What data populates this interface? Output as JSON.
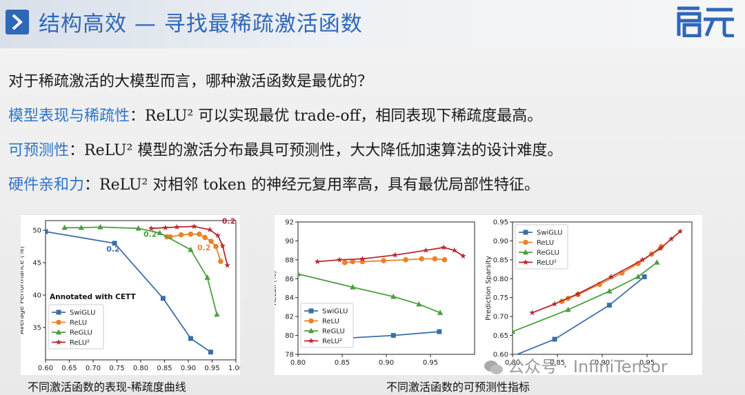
{
  "header": {
    "title": "结构高效 — 寻找最稀疏激活函数",
    "logo_text": "启元"
  },
  "body": {
    "question": "对于稀疏激活的大模型而言，哪种激活函数是最优的？",
    "points": [
      {
        "key": "模型表现与稀疏性",
        "text": "：ReLU² 可以实现最优 trade-off，相同表现下稀疏度最高。"
      },
      {
        "key": "可预测性",
        "text": "：ReLU² 模型的激活分布最具可预测性，大大降低加速算法的设计难度。"
      },
      {
        "key": "硬件亲和力",
        "text": "：ReLU² 对相邻 token 的神经元复用率高，具有最优局部性特征。"
      }
    ]
  },
  "captions": {
    "left": "不同激活函数的表现-稀疏度曲线",
    "right": "不同激活函数的可预测性指标"
  },
  "watermark": "公众号 · InfiniTensor",
  "colors": {
    "title": "#2f67b9",
    "keyword": "#2f74c8",
    "swiglu": "#3a6ea8",
    "relu": "#e8832a",
    "reglu": "#4a9f3e",
    "relu2": "#b8282e"
  },
  "chart_data": [
    {
      "type": "line",
      "xlabel": "",
      "ylabel": "Average Performance (%)",
      "xlim": [
        0.6,
        1.0
      ],
      "ylim": [
        30,
        51.5
      ],
      "xticks": [
        "0.60",
        "0.65",
        "0.70",
        "0.75",
        "0.80",
        "0.85",
        "0.90",
        "0.95",
        "1.00"
      ],
      "yticks": [
        "35",
        "40",
        "45",
        "50"
      ],
      "annotation": "Annotated with CETT",
      "legend": [
        "SwiGLU",
        "ReLU",
        "ReGLU",
        "ReLU²"
      ],
      "legend_position": "bottom-left",
      "series": [
        {
          "name": "SwiGLU",
          "marker": "square",
          "x": [
            0.6,
            0.745,
            0.847,
            0.905,
            0.947
          ],
          "y": [
            49.8,
            48.0,
            39.5,
            33.3,
            31.2
          ]
        },
        {
          "name": "ReLU",
          "marker": "circle",
          "x": [
            0.855,
            0.862,
            0.885,
            0.905,
            0.923,
            0.935,
            0.948,
            0.958,
            0.968
          ],
          "y": [
            49.0,
            49.0,
            49.3,
            49.4,
            49.4,
            48.9,
            48.3,
            47.5,
            45.2
          ]
        },
        {
          "name": "ReGLU",
          "marker": "triangle",
          "x": [
            0.64,
            0.675,
            0.715,
            0.795,
            0.84,
            0.905,
            0.94,
            0.96
          ],
          "y": [
            50.4,
            50.4,
            50.5,
            50.3,
            49.6,
            47.0,
            42.7,
            37.0
          ]
        },
        {
          "name": "ReLU²",
          "marker": "star",
          "x": [
            0.822,
            0.852,
            0.876,
            0.912,
            0.945,
            0.962,
            0.972,
            0.982
          ],
          "y": [
            50.3,
            50.4,
            50.5,
            50.6,
            50.1,
            49.2,
            47.6,
            44.6
          ]
        }
      ],
      "labels": [
        {
          "text": "0.2",
          "x": 0.742,
          "y": 46.7,
          "color": "#3a6ea8"
        },
        {
          "text": "0.2",
          "x": 0.82,
          "y": 49.0,
          "color": "#4a9f3e"
        },
        {
          "text": "0.2",
          "x": 0.933,
          "y": 46.9,
          "color": "#e8832a"
        },
        {
          "text": "0.2",
          "x": 0.985,
          "y": 51.0,
          "color": "#b8282e"
        }
      ]
    },
    {
      "type": "line",
      "xlabel": "",
      "ylabel": "Recall (%)",
      "xlim": [
        0.8,
        1.0
      ],
      "ylim": [
        78,
        92
      ],
      "xticks": [
        "0.80",
        "0.85",
        "0.90",
        "0.95"
      ],
      "yticks": [
        "78",
        "80",
        "82",
        "84",
        "86",
        "88",
        "90",
        "92"
      ],
      "legend": [
        "SwiGLU",
        "ReLU",
        "ReGLU",
        "ReLU²"
      ],
      "legend_position": "bottom-left",
      "series": [
        {
          "name": "SwiGLU",
          "marker": "square",
          "x": [
            0.815,
            0.908,
            0.96
          ],
          "y": [
            79.5,
            80.0,
            80.4
          ]
        },
        {
          "name": "ReLU",
          "marker": "circle",
          "x": [
            0.853,
            0.862,
            0.873,
            0.897,
            0.922,
            0.94,
            0.955,
            0.966
          ],
          "y": [
            87.7,
            87.8,
            87.8,
            87.9,
            88.0,
            88.1,
            88.1,
            88.0
          ]
        },
        {
          "name": "ReGLU",
          "marker": "triangle",
          "x": [
            0.8,
            0.862,
            0.908,
            0.937,
            0.961
          ],
          "y": [
            86.5,
            85.1,
            84.1,
            83.3,
            82.4
          ]
        },
        {
          "name": "ReLU²",
          "marker": "star",
          "x": [
            0.822,
            0.847,
            0.873,
            0.91,
            0.945,
            0.965,
            0.977,
            0.987
          ],
          "y": [
            87.8,
            88.0,
            88.1,
            88.5,
            89.0,
            89.3,
            89.0,
            88.4
          ]
        }
      ]
    },
    {
      "type": "line",
      "xlabel": "",
      "ylabel": "Prediction Sparsity",
      "xlim": [
        0.8,
        1.0
      ],
      "ylim": [
        0.6,
        0.95
      ],
      "xticks": [
        "0.80",
        "0.85",
        "0.90",
        "0.95"
      ],
      "yticks": [
        "0.60",
        "0.65",
        "0.70",
        "0.75",
        "0.80",
        "0.85",
        "0.90",
        "0.95"
      ],
      "legend": [
        "SwiGLU",
        "ReLU",
        "ReGLU",
        "ReLU²"
      ],
      "legend_position": "top-left",
      "series": [
        {
          "name": "SwiGLU",
          "marker": "square",
          "x": [
            0.8,
            0.847,
            0.908,
            0.947
          ],
          "y": [
            0.595,
            0.64,
            0.73,
            0.805
          ]
        },
        {
          "name": "ReLU",
          "marker": "circle",
          "x": [
            0.855,
            0.862,
            0.873,
            0.897,
            0.922,
            0.94,
            0.955,
            0.966
          ],
          "y": [
            0.74,
            0.748,
            0.758,
            0.785,
            0.815,
            0.84,
            0.865,
            0.885
          ]
        },
        {
          "name": "ReGLU",
          "marker": "triangle",
          "x": [
            0.8,
            0.862,
            0.908,
            0.94,
            0.961
          ],
          "y": [
            0.66,
            0.718,
            0.767,
            0.805,
            0.843
          ]
        },
        {
          "name": "ReLU²",
          "marker": "star",
          "x": [
            0.822,
            0.847,
            0.873,
            0.91,
            0.945,
            0.965,
            0.977,
            0.987
          ],
          "y": [
            0.71,
            0.733,
            0.76,
            0.805,
            0.85,
            0.88,
            0.905,
            0.925
          ]
        }
      ]
    }
  ]
}
